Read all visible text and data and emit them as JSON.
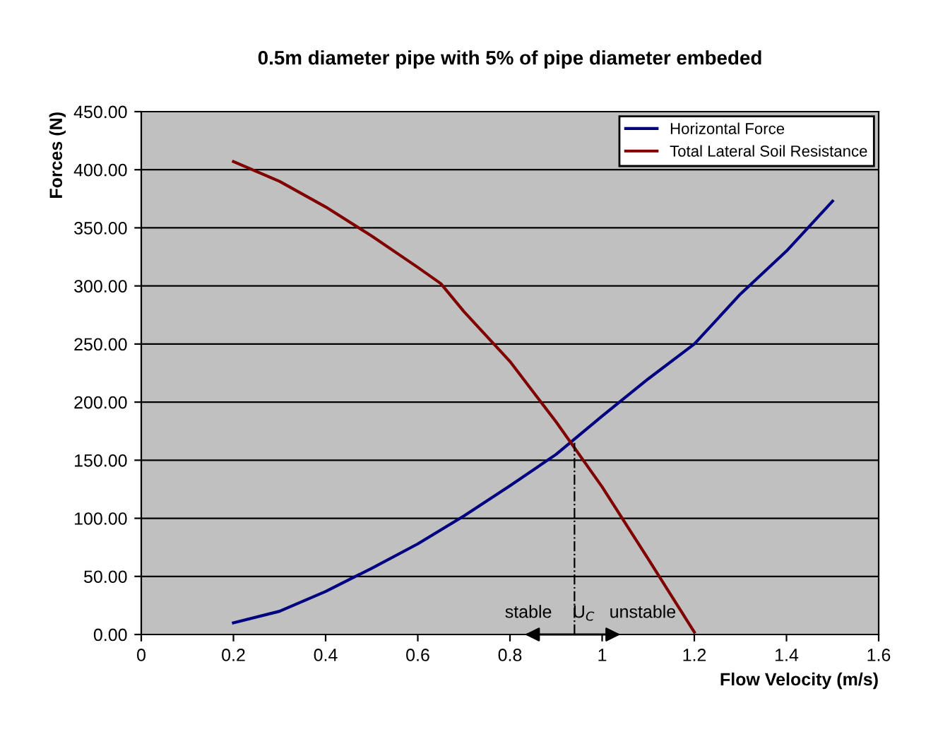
{
  "chart_data": {
    "type": "line",
    "title": "0.5m diameter pipe with 5% of pipe diameter embeded",
    "xlabel": "Flow Velocity (m/s)",
    "ylabel": "Forces (N)",
    "series": [
      {
        "name": "Horizontal Force",
        "color": "#000080",
        "x": [
          0.2,
          0.3,
          0.4,
          0.5,
          0.6,
          0.7,
          0.8,
          0.9,
          1.0,
          1.1,
          1.2,
          1.3,
          1.4,
          1.5
        ],
        "values": [
          10,
          20,
          37,
          57,
          78,
          102,
          128,
          155,
          188,
          220,
          250,
          293,
          330,
          373
        ]
      },
      {
        "name": "Total Lateral Soil Resistance",
        "color": "#800000",
        "x": [
          0.2,
          0.3,
          0.4,
          0.5,
          0.6,
          0.65,
          0.7,
          0.8,
          0.9,
          1.0,
          1.1,
          1.2
        ],
        "values": [
          407,
          390,
          368,
          343,
          316,
          302,
          278,
          235,
          183,
          127,
          65,
          2
        ]
      },
      {
        "type": "line",
        "color": "#000000",
        "line_style": "dashdot",
        "x": [
          0.94,
          0.94
        ],
        "values": [
          0,
          165
        ]
      }
    ],
    "xlim": [
      0,
      1.6
    ],
    "xticks": [
      0,
      0.2,
      0.4,
      0.6,
      0.8,
      1,
      1.2,
      1.4,
      1.6
    ],
    "ylim": [
      0,
      450
    ],
    "yticks": [
      {
        "value": 0,
        "label": "0.00"
      },
      {
        "value": 50,
        "label": "50.00"
      },
      {
        "value": 100,
        "label": "100.00"
      },
      {
        "value": 150,
        "label": "150.00"
      },
      {
        "value": 200,
        "label": "200.00"
      },
      {
        "value": 250,
        "label": "250.00"
      },
      {
        "value": 300,
        "label": "300.00"
      },
      {
        "value": 350,
        "label": "350.00"
      },
      {
        "value": 400,
        "label": "400.00"
      },
      {
        "value": 450,
        "label": "450.00"
      }
    ],
    "annotations": [
      "stable",
      "U$_{C}$",
      "unstable"
    ],
    "grid": "y",
    "legend": "top right",
    "marker": "none",
    "line_style": "solid"
  }
}
